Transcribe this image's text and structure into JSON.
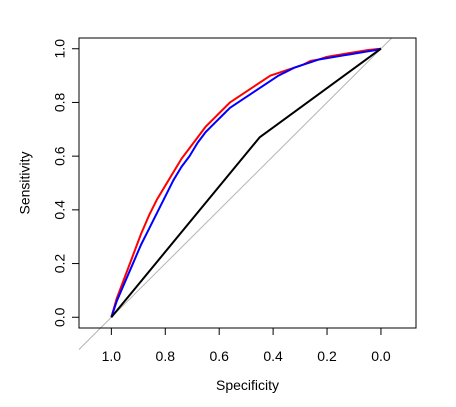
{
  "chart_data": {
    "type": "line",
    "title": "",
    "xlabel": "Specificity",
    "ylabel": "Sensitivity",
    "xlim": [
      1.12,
      -0.13
    ],
    "ylim": [
      -0.04,
      1.04
    ],
    "x_reversed": true,
    "x_ticks": [
      "1.0",
      "0.8",
      "0.6",
      "0.4",
      "0.2",
      "0.0"
    ],
    "x_tick_values": [
      1.0,
      0.8,
      0.6,
      0.4,
      0.2,
      0.0
    ],
    "y_ticks": [
      "0.0",
      "0.2",
      "0.4",
      "0.6",
      "0.8",
      "1.0"
    ],
    "y_tick_values": [
      0.0,
      0.2,
      0.4,
      0.6,
      0.8,
      1.0
    ],
    "grid": false,
    "legend": false,
    "reference_line": {
      "from": [
        1.12,
        -0.12
      ],
      "to": [
        -0.04,
        1.04
      ],
      "color": "#b3b3b3"
    },
    "series": [
      {
        "color": "#ff0000",
        "x": [
          1.0,
          0.98,
          0.95,
          0.92,
          0.89,
          0.86,
          0.83,
          0.8,
          0.77,
          0.74,
          0.71,
          0.68,
          0.65,
          0.62,
          0.59,
          0.56,
          0.53,
          0.5,
          0.47,
          0.44,
          0.41,
          0.38,
          0.35,
          0.32,
          0.29,
          0.26,
          0.23,
          0.2,
          0.17,
          0.14,
          0.11,
          0.08,
          0.05,
          0.02,
          0.0
        ],
        "y": [
          0.0,
          0.07,
          0.15,
          0.23,
          0.31,
          0.38,
          0.44,
          0.49,
          0.54,
          0.59,
          0.63,
          0.67,
          0.71,
          0.74,
          0.77,
          0.8,
          0.82,
          0.84,
          0.86,
          0.88,
          0.9,
          0.91,
          0.92,
          0.93,
          0.94,
          0.955,
          0.96,
          0.97,
          0.975,
          0.98,
          0.985,
          0.99,
          0.995,
          0.998,
          1.0
        ]
      },
      {
        "color": "#0000ff",
        "x": [
          1.0,
          0.98,
          0.95,
          0.92,
          0.89,
          0.86,
          0.83,
          0.8,
          0.77,
          0.74,
          0.71,
          0.68,
          0.65,
          0.62,
          0.59,
          0.56,
          0.53,
          0.5,
          0.47,
          0.44,
          0.41,
          0.38,
          0.35,
          0.32,
          0.29,
          0.26,
          0.23,
          0.2,
          0.17,
          0.14,
          0.11,
          0.08,
          0.05,
          0.02,
          0.0
        ],
        "y": [
          0.0,
          0.06,
          0.13,
          0.2,
          0.27,
          0.33,
          0.39,
          0.45,
          0.51,
          0.56,
          0.6,
          0.65,
          0.69,
          0.72,
          0.75,
          0.78,
          0.8,
          0.82,
          0.84,
          0.86,
          0.88,
          0.9,
          0.915,
          0.93,
          0.94,
          0.95,
          0.96,
          0.965,
          0.97,
          0.975,
          0.98,
          0.985,
          0.99,
          0.995,
          1.0
        ]
      },
      {
        "color": "#000000",
        "x": [
          1.0,
          0.45,
          0.0
        ],
        "y": [
          0.0,
          0.67,
          1.0
        ]
      }
    ]
  }
}
